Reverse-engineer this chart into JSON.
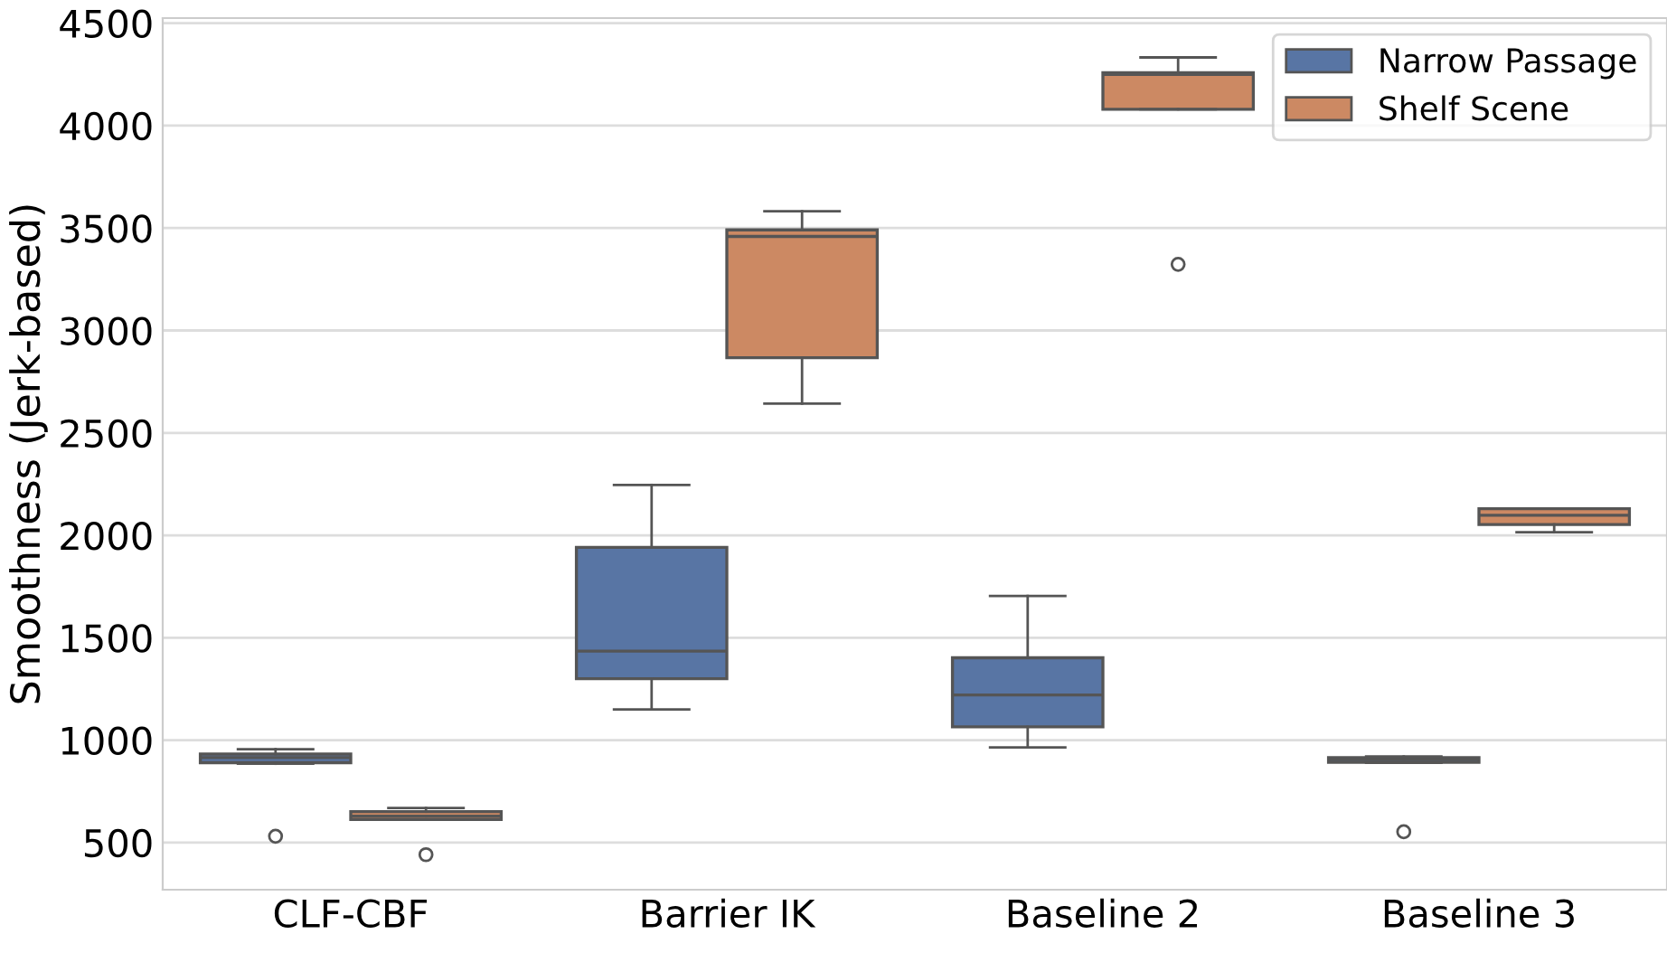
{
  "chart_data": {
    "type": "box",
    "ylabel": "Smoothness (Jerk-based)",
    "categories": [
      "CLF-CBF",
      "Barrier IK",
      "Baseline 2",
      "Baseline 3"
    ],
    "ylim": [
      270,
      4525
    ],
    "yticks": [
      500,
      1000,
      1500,
      2000,
      2500,
      3000,
      3500,
      4000,
      4500
    ],
    "grid": "y",
    "legend": "top right",
    "series": [
      {
        "name": "Narrow Passage",
        "color": "#5875a4",
        "boxes": [
          {
            "low": 885,
            "q1": 890,
            "median": 915,
            "q3": 932,
            "high": 956,
            "outliers": [
              531
            ]
          },
          {
            "low": 1150,
            "q1": 1300,
            "median": 1435,
            "q3": 1941,
            "high": 2246
          },
          {
            "low": 965,
            "q1": 1065,
            "median": 1221,
            "q3": 1402,
            "high": 1704
          },
          {
            "low": 890,
            "q1": 892,
            "median": 905,
            "q3": 915,
            "high": 920,
            "outliers": [
              553
            ]
          }
        ]
      },
      {
        "name": "Shelf Scene",
        "color": "#cc8963",
        "boxes": [
          {
            "low": 613,
            "q1": 613,
            "median": 629,
            "q3": 651,
            "high": 669,
            "outliers": [
              441
            ]
          },
          {
            "low": 2643,
            "q1": 2867,
            "median": 3459,
            "q3": 3491,
            "high": 3582
          },
          {
            "low": 4080,
            "q1": 4080,
            "median": 4250,
            "q3": 4258,
            "high": 4333,
            "outliers": [
              3323
            ]
          },
          {
            "low": 2015,
            "q1": 2053,
            "median": 2098,
            "q3": 2130,
            "high": 2130
          }
        ]
      }
    ]
  }
}
